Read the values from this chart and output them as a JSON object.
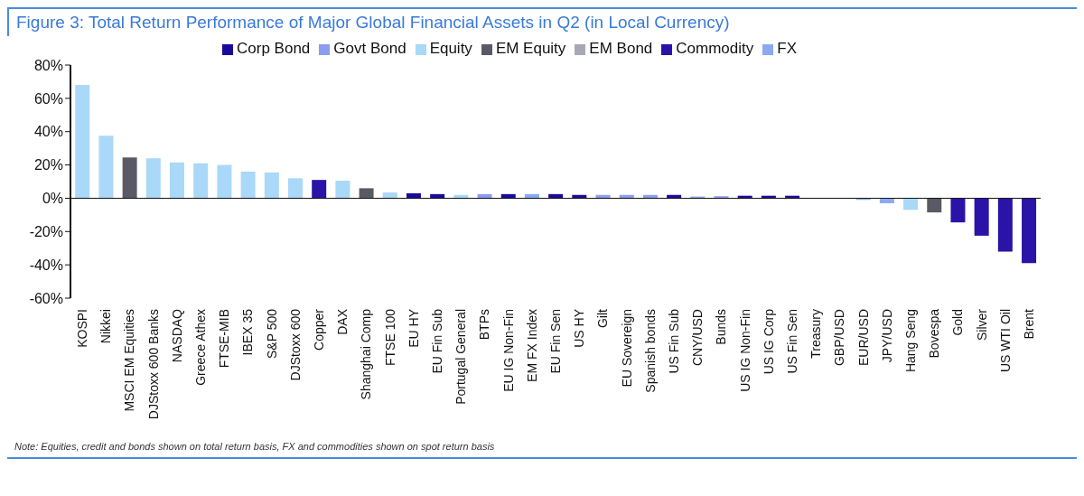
{
  "chart_data": {
    "type": "bar",
    "title": "Figure 3: Total Return Performance of Major Global Financial Assets in Q2 (in Local Currency)",
    "categories": [
      "KOSPI",
      "Nikkei",
      "MSCI EM Equities",
      "DJStoxx 600 Banks",
      "NASDAQ",
      "Greece Athex",
      "FTSE-MIB",
      "IBEX 35",
      "S&P 500",
      "DJStoxx 600",
      "Copper",
      "DAX",
      "Shanghai Comp",
      "FTSE 100",
      "EU HY",
      "EU Fin Sub",
      "Portugal General",
      "BTPs",
      "EU IG Non-Fin",
      "EM FX Index",
      "EU Fin Sen",
      "US HY",
      "Gilt",
      "EU Sovereign",
      "Spanish bonds",
      "US Fin Sub",
      "CNY/USD",
      "Bunds",
      "US IG Non-Fin",
      "US IG Corp",
      "US Fin Sen",
      "Treasury",
      "GBP/USD",
      "EUR/USD",
      "JPY/USD",
      "Hang Seng",
      "Bovespa",
      "Gold",
      "Silver",
      "US WTI Oil",
      "Brent"
    ],
    "series": [
      {
        "name": "Corp Bond",
        "color": "#1a0a9c",
        "values": [
          null,
          null,
          null,
          null,
          null,
          null,
          null,
          null,
          null,
          null,
          null,
          null,
          null,
          null,
          3,
          2.5,
          null,
          null,
          2.5,
          null,
          2.5,
          2,
          null,
          null,
          null,
          2,
          null,
          null,
          1.5,
          1.5,
          1.5,
          null,
          null,
          null,
          null,
          null,
          null,
          null,
          null,
          null,
          null
        ]
      },
      {
        "name": "Govt Bond",
        "color": "#8c9cf0",
        "values": [
          null,
          null,
          null,
          null,
          null,
          null,
          null,
          null,
          null,
          null,
          null,
          null,
          null,
          null,
          null,
          null,
          null,
          2.5,
          null,
          null,
          null,
          null,
          2,
          2,
          2,
          null,
          null,
          1.2,
          null,
          null,
          null,
          0,
          null,
          null,
          null,
          null,
          null,
          null,
          null,
          null,
          null
        ]
      },
      {
        "name": "Equity",
        "color": "#aad8f8",
        "values": [
          68,
          37.5,
          null,
          24,
          21.5,
          21,
          20,
          16,
          15.5,
          12,
          null,
          10.5,
          null,
          3.5,
          null,
          null,
          2,
          null,
          null,
          null,
          null,
          null,
          null,
          null,
          null,
          null,
          null,
          null,
          null,
          null,
          null,
          null,
          null,
          null,
          null,
          -7,
          null,
          null,
          null,
          null,
          null
        ]
      },
      {
        "name": "EM Equity",
        "color": "#5a5a66",
        "values": [
          null,
          null,
          24.5,
          null,
          null,
          null,
          null,
          null,
          null,
          null,
          null,
          null,
          6,
          null,
          null,
          null,
          null,
          null,
          null,
          null,
          null,
          null,
          null,
          null,
          null,
          null,
          null,
          null,
          null,
          null,
          null,
          null,
          null,
          null,
          null,
          null,
          -8.5,
          null,
          null,
          null,
          null
        ]
      },
      {
        "name": "EM Bond",
        "color": "#a8a8b4",
        "values": [
          null,
          null,
          null,
          null,
          null,
          null,
          null,
          null,
          null,
          null,
          null,
          null,
          null,
          null,
          null,
          null,
          null,
          null,
          null,
          null,
          null,
          null,
          null,
          null,
          null,
          null,
          null,
          null,
          null,
          null,
          null,
          null,
          null,
          null,
          null,
          null,
          null,
          null,
          null,
          null,
          null
        ]
      },
      {
        "name": "Commodity",
        "color": "#2a14a8",
        "values": [
          null,
          null,
          null,
          null,
          null,
          null,
          null,
          null,
          null,
          null,
          11,
          null,
          null,
          null,
          null,
          null,
          null,
          null,
          null,
          null,
          null,
          null,
          null,
          null,
          null,
          null,
          null,
          null,
          null,
          null,
          null,
          null,
          null,
          null,
          null,
          null,
          null,
          -14.5,
          -22.5,
          -32,
          -39
        ]
      },
      {
        "name": "FX",
        "color": "#8aaaf0",
        "values": [
          null,
          null,
          null,
          null,
          null,
          null,
          null,
          null,
          null,
          null,
          null,
          null,
          null,
          null,
          null,
          null,
          null,
          null,
          null,
          2.5,
          null,
          null,
          null,
          null,
          null,
          null,
          1,
          null,
          null,
          null,
          null,
          null,
          0,
          -1,
          -3,
          null,
          null,
          null,
          null,
          null,
          null
        ]
      }
    ],
    "ylim": [
      -60,
      80
    ],
    "yticks": [
      {
        "value": -60,
        "label": "-60%"
      },
      {
        "value": -40,
        "label": "-40%"
      },
      {
        "value": -20,
        "label": "-20%"
      },
      {
        "value": 0,
        "label": "0%"
      },
      {
        "value": 20,
        "label": "20%"
      },
      {
        "value": 40,
        "label": "40%"
      },
      {
        "value": 60,
        "label": "60%"
      },
      {
        "value": 80,
        "label": "80%"
      }
    ],
    "legend": "top right",
    "annotations": [
      "Note: Equities, credit and bonds shown on total return basis, FX and commodities shown on spot return basis"
    ]
  }
}
